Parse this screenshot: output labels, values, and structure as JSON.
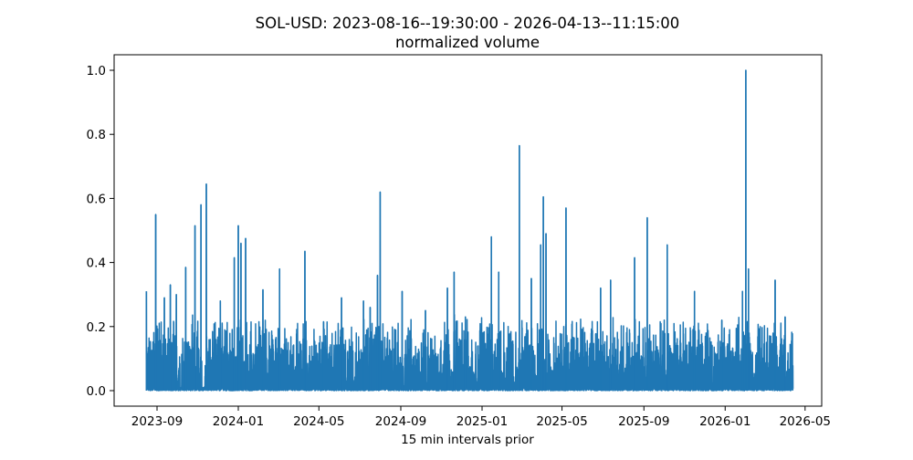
{
  "chart_data": {
    "type": "line",
    "title": "SOL-USD: 2023-08-16--19:30:00 - 2026-04-13--11:15:00",
    "subtitle": "normalized volume",
    "xlabel": "15 min intervals prior",
    "ylabel": "",
    "x_range": [
      "2023-08-16",
      "2026-04-13"
    ],
    "ylim": [
      0.0,
      1.0
    ],
    "grid": false,
    "line_color": "#1f77b4",
    "x_ticks": [
      "2023-09",
      "2024-01",
      "2024-05",
      "2024-09",
      "2025-01",
      "2025-05",
      "2025-09",
      "2026-01",
      "2026-05"
    ],
    "y_ticks": [
      "0.0",
      "0.2",
      "0.4",
      "0.6",
      "0.8",
      "1.0"
    ],
    "baseline_range": [
      0.0,
      0.12
    ],
    "peaks": [
      [
        "2023-08-16",
        0.31
      ],
      [
        "2023-08-30",
        0.55
      ],
      [
        "2023-09-12",
        0.29
      ],
      [
        "2023-09-21",
        0.33
      ],
      [
        "2023-09-30",
        0.3
      ],
      [
        "2023-10-14",
        0.385
      ],
      [
        "2023-10-28",
        0.515
      ],
      [
        "2023-11-06",
        0.58
      ],
      [
        "2023-11-14",
        0.645
      ],
      [
        "2023-12-05",
        0.28
      ],
      [
        "2023-12-26",
        0.415
      ],
      [
        "2024-01-01",
        0.515
      ],
      [
        "2024-01-05",
        0.46
      ],
      [
        "2024-01-12",
        0.475
      ],
      [
        "2024-02-07",
        0.315
      ],
      [
        "2024-03-03",
        0.38
      ],
      [
        "2024-04-10",
        0.435
      ],
      [
        "2024-05-08",
        0.215
      ],
      [
        "2024-06-04",
        0.29
      ],
      [
        "2024-07-07",
        0.28
      ],
      [
        "2024-07-17",
        0.26
      ],
      [
        "2024-07-28",
        0.36
      ],
      [
        "2024-08-01",
        0.62
      ],
      [
        "2024-09-03",
        0.31
      ],
      [
        "2024-10-08",
        0.25
      ],
      [
        "2024-11-10",
        0.32
      ],
      [
        "2024-11-20",
        0.37
      ],
      [
        "2024-12-07",
        0.23
      ],
      [
        "2025-01-15",
        0.48
      ],
      [
        "2025-01-26",
        0.37
      ],
      [
        "2025-02-26",
        0.765
      ],
      [
        "2025-03-16",
        0.35
      ],
      [
        "2025-03-30",
        0.455
      ],
      [
        "2025-04-03",
        0.605
      ],
      [
        "2025-04-07",
        0.49
      ],
      [
        "2025-05-07",
        0.57
      ],
      [
        "2025-06-28",
        0.32
      ],
      [
        "2025-07-13",
        0.345
      ],
      [
        "2025-08-18",
        0.415
      ],
      [
        "2025-09-06",
        0.54
      ],
      [
        "2025-10-06",
        0.455
      ],
      [
        "2025-11-16",
        0.31
      ],
      [
        "2025-12-27",
        0.22
      ],
      [
        "2026-01-27",
        0.31
      ],
      [
        "2026-02-01",
        1.0
      ],
      [
        "2026-02-05",
        0.38
      ],
      [
        "2026-03-17",
        0.345
      ],
      [
        "2026-04-01",
        0.23
      ]
    ]
  }
}
